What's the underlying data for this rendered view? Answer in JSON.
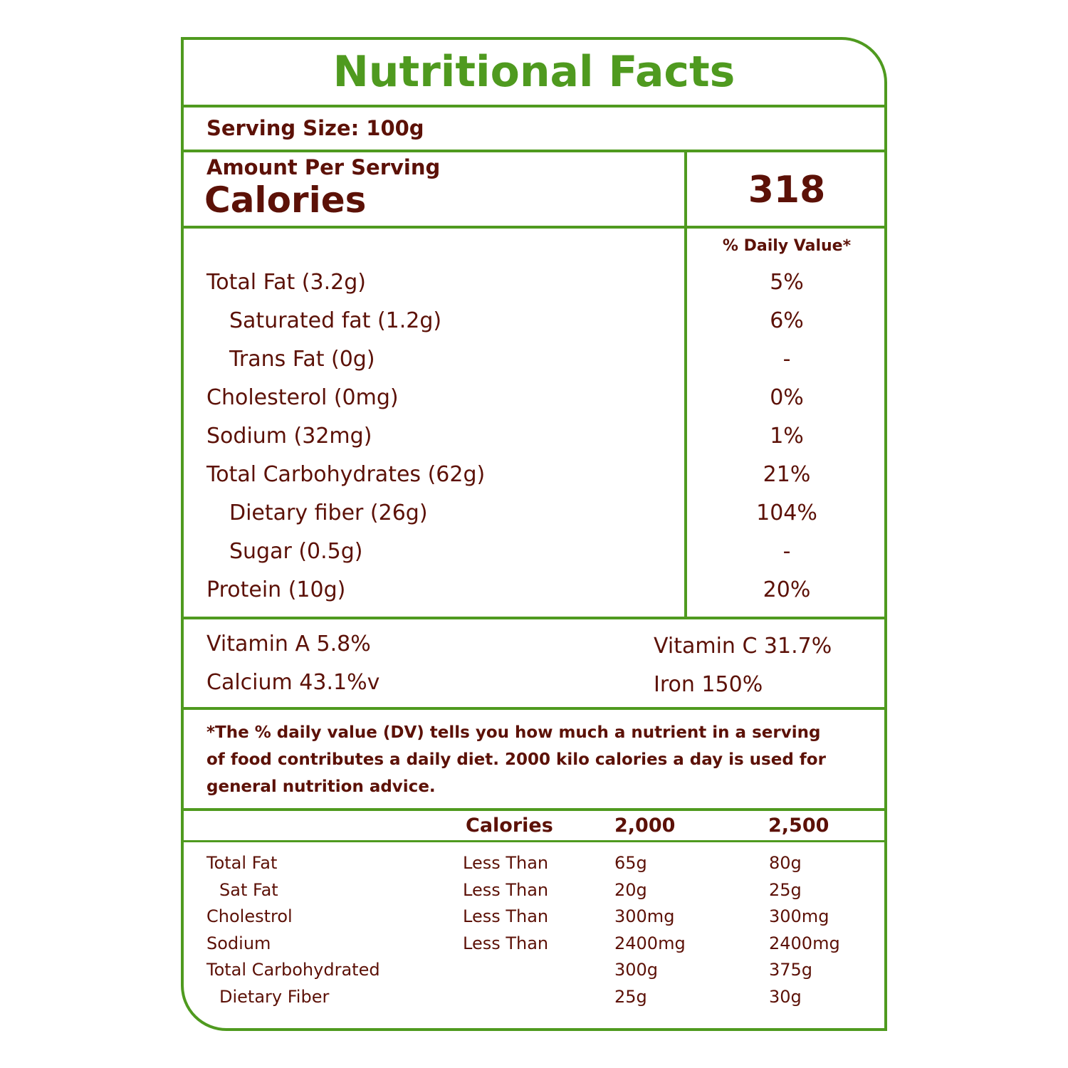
{
  "title": "Nutritional Facts",
  "serving_size": "Serving Size: 100g",
  "amount_per_serving": "Amount Per Serving",
  "calories_label": "Calories",
  "calories_value": "318",
  "daily_value_header": "% Daily Value*",
  "nutrients": [
    {
      "name": "Total Fat (3.2g)",
      "dv": "5%"
    },
    {
      "name": "Saturated fat (1.2g)",
      "dv": "6%"
    },
    {
      "name": "Trans Fat (0g)",
      "dv": "-"
    },
    {
      "name": "Cholesterol (0mg)",
      "dv": "0%"
    },
    {
      "name": "Sodium (32mg)",
      "dv": "1%"
    },
    {
      "name": "Total Carbohydrates  (62g)",
      "dv": "21%"
    },
    {
      "name": "Dietary fiber (26g)",
      "dv": "104%"
    },
    {
      "name": "Sugar (0.5g)",
      "dv": "-"
    },
    {
      "name": "Protein (10g)",
      "dv": "20%"
    }
  ],
  "vitamins": {
    "vitamin_a": "Vitamin A 5.8%",
    "vitamin_c": "Vitamin C 31.7%",
    "calcium": "Calcium 43.1%v",
    "iron": "Iron 150%"
  },
  "footnote": [
    "*The % daily value (DV) tells you how much a nutrient in a serving",
    "of food contributes a daily diet. 2000 kilo calories a day is used for",
    "general nutrition advice."
  ],
  "reference_table": {
    "headers": [
      "Calories",
      "2,000",
      "2,500"
    ],
    "rows": [
      {
        "name": "Total Fat",
        "limit": "Less Than",
        "v2000": "65g",
        "v2500": "80g"
      },
      {
        "name": "Sat Fat",
        "limit": "Less Than",
        "v2000": "20g",
        "v2500": "25g"
      },
      {
        "name": "Cholestrol",
        "limit": "Less Than",
        "v2000": "300mg",
        "v2500": "300mg"
      },
      {
        "name": "Sodium",
        "limit": "Less Than",
        "v2000": "2400mg",
        "v2500": "2400mg"
      },
      {
        "name": "Total Carbohydrated",
        "limit": "",
        "v2000": "300g",
        "v2500": "375g"
      },
      {
        "name": "Dietary Fiber",
        "limit": "",
        "v2000": "25g",
        "v2500": "30g"
      }
    ]
  }
}
